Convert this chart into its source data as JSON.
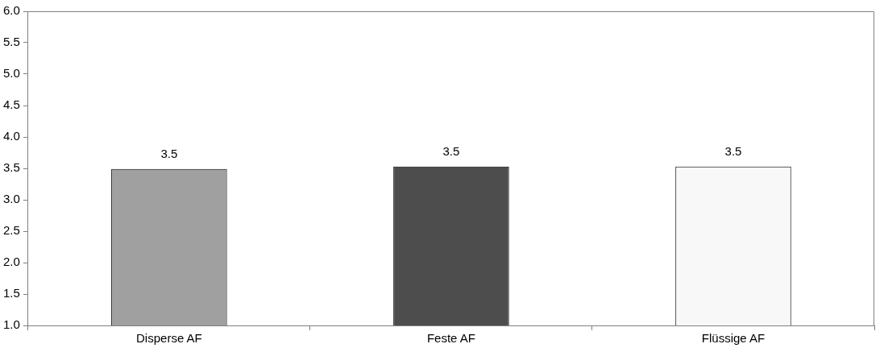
{
  "chart_data": {
    "type": "bar",
    "categories": [
      "Disperse AF",
      "Feste AF",
      "Flüssige AF"
    ],
    "values": [
      3.49,
      3.53,
      3.53
    ],
    "colors": [
      "#a0a0a0",
      "#4d4d4d",
      "#f8f8f8"
    ],
    "value_labels": [
      "3.5",
      "3.5",
      "3.5"
    ],
    "ylim": [
      1.0,
      6.0
    ],
    "yticks": [
      {
        "value": 1.0,
        "label": "1.0"
      },
      {
        "value": 1.5,
        "label": "1.5"
      },
      {
        "value": 2.0,
        "label": "2.0"
      },
      {
        "value": 2.5,
        "label": "2.5"
      },
      {
        "value": 3.0,
        "label": "3.0"
      },
      {
        "value": 3.5,
        "label": "3.5"
      },
      {
        "value": 4.0,
        "label": "4.0"
      },
      {
        "value": 4.5,
        "label": "4.5"
      },
      {
        "value": 5.0,
        "label": "5.0"
      },
      {
        "value": 5.5,
        "label": "5.5"
      },
      {
        "value": 6.0,
        "label": "6.0"
      }
    ],
    "legend": false
  }
}
